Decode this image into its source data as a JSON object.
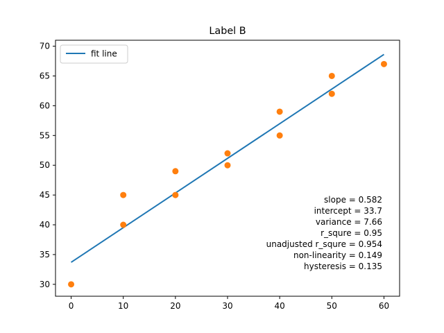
{
  "chart_data": {
    "type": "scatter",
    "title": "Label B",
    "xlabel": "",
    "ylabel": "",
    "xlim": [
      -3,
      63
    ],
    "ylim": [
      28,
      71
    ],
    "x_ticks": [
      0,
      10,
      20,
      30,
      40,
      50,
      60
    ],
    "y_ticks": [
      30,
      35,
      40,
      45,
      50,
      55,
      60,
      65,
      70
    ],
    "grid": false,
    "legend": {
      "position": "upper-left",
      "entries": [
        "fit line"
      ]
    },
    "series": [
      {
        "name": "fit line",
        "kind": "line",
        "color": "#1f77b4",
        "x": [
          0,
          60
        ],
        "y": [
          33.7,
          68.62
        ]
      },
      {
        "kind": "scatter",
        "color": "#ff7f0e",
        "x": [
          0,
          10,
          10,
          20,
          20,
          30,
          30,
          40,
          40,
          50,
          50,
          60
        ],
        "y": [
          30,
          40,
          45,
          45,
          49,
          50,
          52,
          55,
          59,
          62,
          65,
          67
        ]
      }
    ],
    "annotations": [
      "slope = 0.582",
      "intercept = 33.7",
      "variance = 7.66",
      "r_squre = 0.95",
      "unadjusted r_squre = 0.954",
      "non-linearity = 0.149",
      "hysteresis = 0.135"
    ]
  }
}
